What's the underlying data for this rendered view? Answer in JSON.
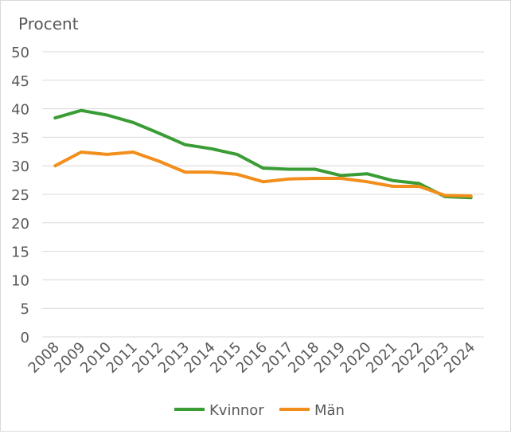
{
  "chart_data": {
    "type": "line",
    "title": "",
    "ylabel": "Procent",
    "xlabel": "",
    "ylim": [
      0,
      50
    ],
    "ytick_step": 5,
    "yticks": [
      "0",
      "5",
      "10",
      "15",
      "20",
      "25",
      "30",
      "35",
      "40",
      "45",
      "50"
    ],
    "grid": true,
    "legend_position": "bottom",
    "categories": [
      "2008",
      "2009",
      "2010",
      "2011",
      "2012",
      "2013",
      "2014",
      "2015",
      "2016",
      "2017",
      "2018",
      "2019",
      "2020",
      "2021",
      "2022",
      "2023",
      "2024"
    ],
    "series": [
      {
        "name": "Kvinnor",
        "color": "#3a9c34",
        "values": [
          38.4,
          39.7,
          38.9,
          37.6,
          35.7,
          33.7,
          33.0,
          32.0,
          29.6,
          29.4,
          29.4,
          28.3,
          28.6,
          27.4,
          26.9,
          24.6,
          24.4
        ]
      },
      {
        "name": "Män",
        "color": "#f28e1c",
        "values": [
          30.0,
          32.4,
          32.0,
          32.4,
          30.8,
          28.9,
          28.9,
          28.5,
          27.2,
          27.7,
          27.8,
          27.8,
          27.2,
          26.4,
          26.4,
          24.8,
          24.7
        ]
      }
    ]
  }
}
